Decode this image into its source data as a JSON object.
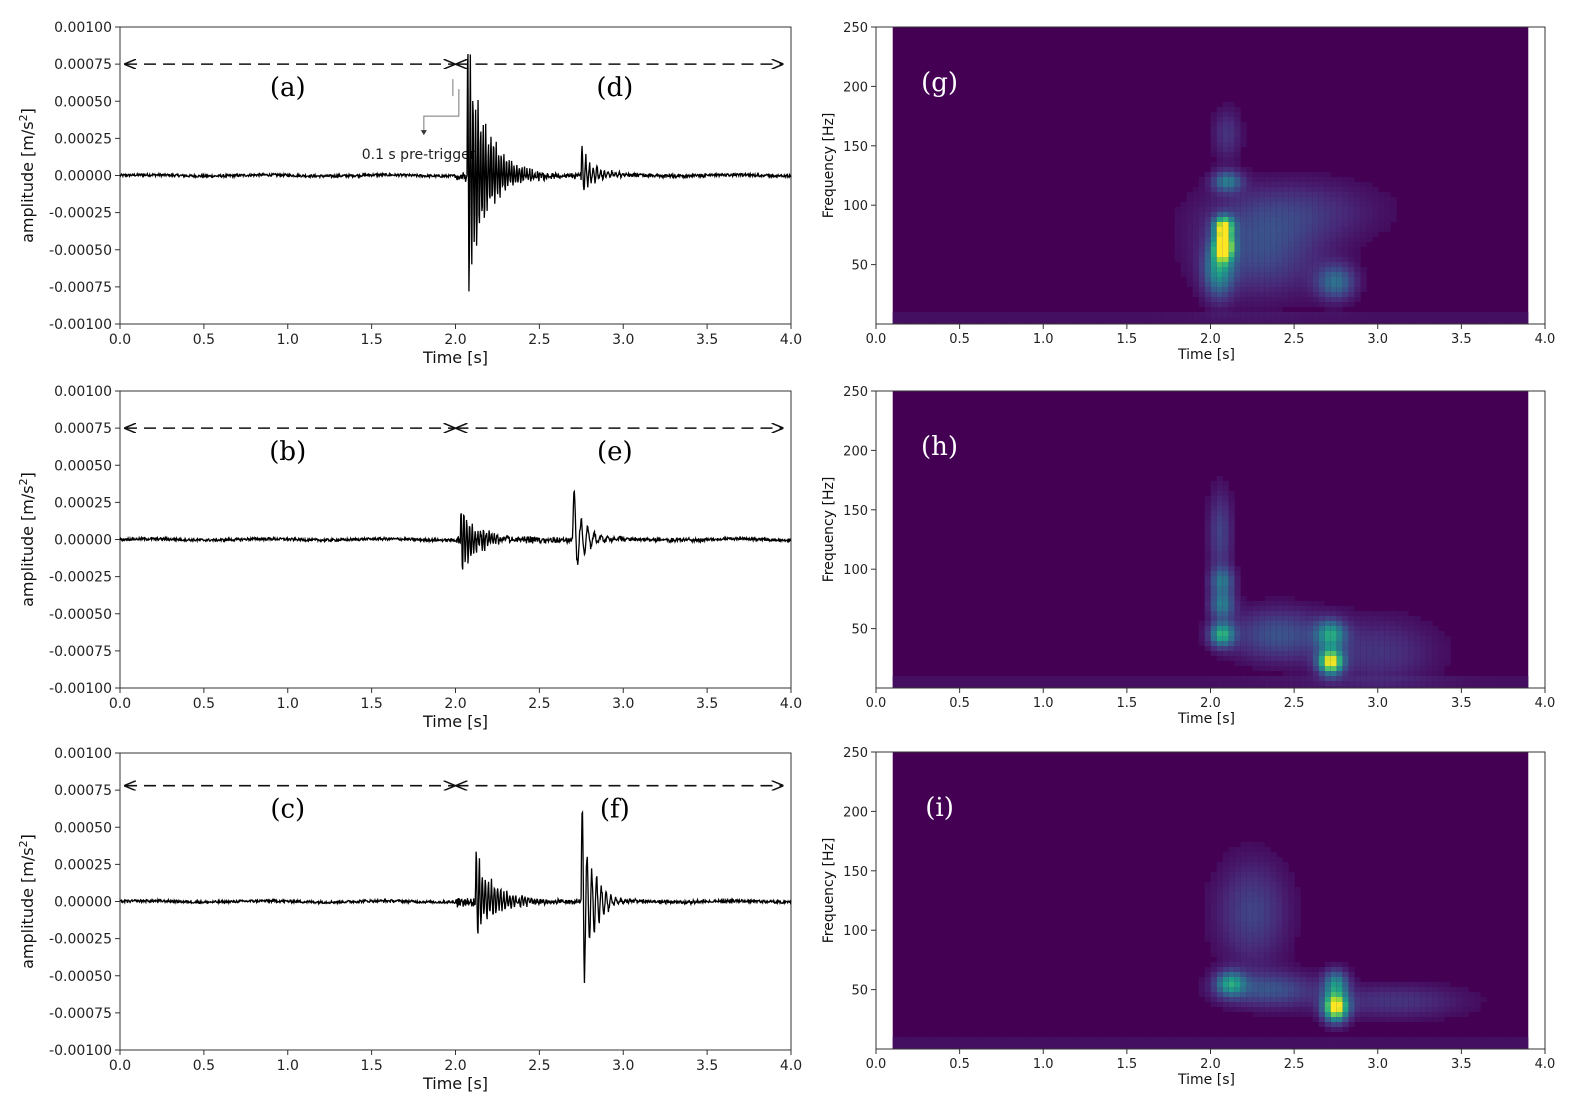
{
  "chart_data": {
    "waveform_panels": [
      {
        "type": "line",
        "xlabel": "Time [s]",
        "ylabel_main": "amplitude [m/s",
        "ylabel_sup": "2",
        "ylabel_end": "]",
        "xlim": [
          0.0,
          4.0
        ],
        "ylim": [
          -0.001,
          0.001
        ],
        "x_ticks": [
          "0.0",
          "0.5",
          "1.0",
          "1.5",
          "2.0",
          "2.5",
          "3.0",
          "3.5",
          "4.0"
        ],
        "y_ticks": [
          "0.00100",
          "0.00075",
          "0.00050",
          "0.00025",
          "0.00000",
          "-0.00025",
          "-0.00050",
          "-0.00075",
          "-0.00100"
        ],
        "label_left": "(a)",
        "label_right": "(d)",
        "annotation": "0.1 s pre-trigger",
        "arrow_y": 0.00075,
        "split_x": 2.0,
        "bursts": [
          {
            "t": 2.07,
            "peak": 0.00095,
            "trough": -0.00088,
            "decay": 0.35,
            "freq": 65
          },
          {
            "t": 2.75,
            "peak": 0.00022,
            "trough": -0.00012,
            "decay": 0.25,
            "freq": 45
          }
        ]
      },
      {
        "type": "line",
        "xlabel": "Time [s]",
        "ylabel_main": "amplitude [m/s",
        "ylabel_sup": "2",
        "ylabel_end": "]",
        "xlim": [
          0.0,
          4.0
        ],
        "ylim": [
          -0.001,
          0.001
        ],
        "x_ticks": [
          "0.0",
          "0.5",
          "1.0",
          "1.5",
          "2.0",
          "2.5",
          "3.0",
          "3.5",
          "4.0"
        ],
        "y_ticks": [
          "0.00100",
          "0.00075",
          "0.00050",
          "0.00025",
          "0.00000",
          "-0.00025",
          "-0.00050",
          "-0.00075",
          "-0.00100"
        ],
        "label_left": "(b)",
        "label_right": "(e)",
        "annotation": "",
        "arrow_y": 0.00075,
        "split_x": 2.0,
        "bursts": [
          {
            "t": 2.03,
            "peak": 0.00023,
            "trough": -0.00026,
            "decay": 0.3,
            "freq": 60
          },
          {
            "t": 2.7,
            "peak": 0.00036,
            "trough": -0.00031,
            "decay": 0.2,
            "freq": 25
          }
        ]
      },
      {
        "type": "line",
        "xlabel": "Time [s]",
        "ylabel_main": "amplitude [m/s",
        "ylabel_sup": "2",
        "ylabel_end": "]",
        "xlim": [
          0.0,
          4.0
        ],
        "ylim": [
          -0.001,
          0.001
        ],
        "x_ticks": [
          "0.0",
          "0.5",
          "1.0",
          "1.5",
          "2.0",
          "2.5",
          "3.0",
          "3.5",
          "4.0"
        ],
        "y_ticks": [
          "0.00100",
          "0.00075",
          "0.00050",
          "0.00025",
          "0.00000",
          "-0.00025",
          "-0.00050",
          "-0.00075",
          "-0.00100"
        ],
        "label_left": "(c)",
        "label_right": "(f)",
        "annotation": "",
        "arrow_y": 0.00078,
        "split_x": 2.0,
        "bursts": [
          {
            "t": 2.12,
            "peak": 0.00034,
            "trough": -0.00026,
            "decay": 0.35,
            "freq": 55
          },
          {
            "t": 2.75,
            "peak": 0.00068,
            "trough": -0.00078,
            "decay": 0.2,
            "freq": 35
          }
        ]
      }
    ],
    "spectrogram_panels": [
      {
        "type": "heatmap",
        "xlabel": "Time [s]",
        "ylabel": "Frequency [Hz]",
        "xlim": [
          0.0,
          4.0
        ],
        "ylim": [
          0,
          250
        ],
        "data_x_range": [
          0.1,
          3.9
        ],
        "x_ticks": [
          "0.0",
          "0.5",
          "1.0",
          "1.5",
          "2.0",
          "2.5",
          "3.0",
          "3.5",
          "4.0"
        ],
        "y_ticks": [
          "250",
          "200",
          "150",
          "100",
          "50"
        ],
        "label": "(g)",
        "background": "#440154",
        "blobs": [
          {
            "t": 2.08,
            "f": 65,
            "st": 0.04,
            "sf": 8,
            "a": 1.0
          },
          {
            "t": 2.08,
            "f": 82,
            "st": 0.04,
            "sf": 6,
            "a": 0.85
          },
          {
            "t": 2.05,
            "f": 45,
            "st": 0.06,
            "sf": 15,
            "a": 0.45
          },
          {
            "t": 2.1,
            "f": 120,
            "st": 0.06,
            "sf": 6,
            "a": 0.4
          },
          {
            "t": 2.3,
            "f": 60,
            "st": 0.25,
            "sf": 25,
            "a": 0.22
          },
          {
            "t": 2.75,
            "f": 35,
            "st": 0.08,
            "sf": 10,
            "a": 0.35
          },
          {
            "t": 2.5,
            "f": 95,
            "st": 0.35,
            "sf": 18,
            "a": 0.15
          },
          {
            "t": 2.1,
            "f": 160,
            "st": 0.06,
            "sf": 15,
            "a": 0.15
          }
        ]
      },
      {
        "type": "heatmap",
        "xlabel": "Time [s]",
        "ylabel": "Frequency [Hz]",
        "xlim": [
          0.0,
          4.0
        ],
        "ylim": [
          0,
          250
        ],
        "data_x_range": [
          0.1,
          3.9
        ],
        "x_ticks": [
          "0.0",
          "0.5",
          "1.0",
          "1.5",
          "2.0",
          "2.5",
          "3.0",
          "3.5",
          "4.0"
        ],
        "y_ticks": [
          "250",
          "200",
          "150",
          "100",
          "50"
        ],
        "label": "(h)",
        "background": "#440154",
        "blobs": [
          {
            "t": 2.72,
            "f": 22,
            "st": 0.05,
            "sf": 7,
            "a": 0.95
          },
          {
            "t": 2.72,
            "f": 45,
            "st": 0.06,
            "sf": 8,
            "a": 0.5
          },
          {
            "t": 2.07,
            "f": 45,
            "st": 0.05,
            "sf": 7,
            "a": 0.6
          },
          {
            "t": 2.07,
            "f": 70,
            "st": 0.05,
            "sf": 8,
            "a": 0.4
          },
          {
            "t": 2.07,
            "f": 90,
            "st": 0.05,
            "sf": 8,
            "a": 0.35
          },
          {
            "t": 2.4,
            "f": 45,
            "st": 0.2,
            "sf": 15,
            "a": 0.25
          },
          {
            "t": 2.06,
            "f": 130,
            "st": 0.05,
            "sf": 25,
            "a": 0.2
          },
          {
            "t": 3.0,
            "f": 30,
            "st": 0.25,
            "sf": 20,
            "a": 0.15
          }
        ]
      },
      {
        "type": "heatmap",
        "xlabel": "Time [s]",
        "ylabel": "Frequency [Hz]",
        "xlim": [
          0.0,
          4.0
        ],
        "ylim": [
          0,
          250
        ],
        "data_x_range": [
          0.1,
          3.9
        ],
        "x_ticks": [
          "0.0",
          "0.5",
          "1.0",
          "1.5",
          "2.0",
          "2.5",
          "3.0",
          "3.5",
          "4.0"
        ],
        "y_ticks": [
          "250",
          "200",
          "150",
          "100",
          "50"
        ],
        "label": "(i)",
        "background": "#440154",
        "blobs": [
          {
            "t": 2.75,
            "f": 35,
            "st": 0.05,
            "sf": 8,
            "a": 1.0
          },
          {
            "t": 2.75,
            "f": 55,
            "st": 0.05,
            "sf": 8,
            "a": 0.45
          },
          {
            "t": 2.12,
            "f": 55,
            "st": 0.06,
            "sf": 7,
            "a": 0.5
          },
          {
            "t": 2.35,
            "f": 50,
            "st": 0.2,
            "sf": 10,
            "a": 0.25
          },
          {
            "t": 2.25,
            "f": 115,
            "st": 0.15,
            "sf": 30,
            "a": 0.2
          },
          {
            "t": 3.1,
            "f": 40,
            "st": 0.3,
            "sf": 10,
            "a": 0.15
          }
        ]
      }
    ]
  }
}
